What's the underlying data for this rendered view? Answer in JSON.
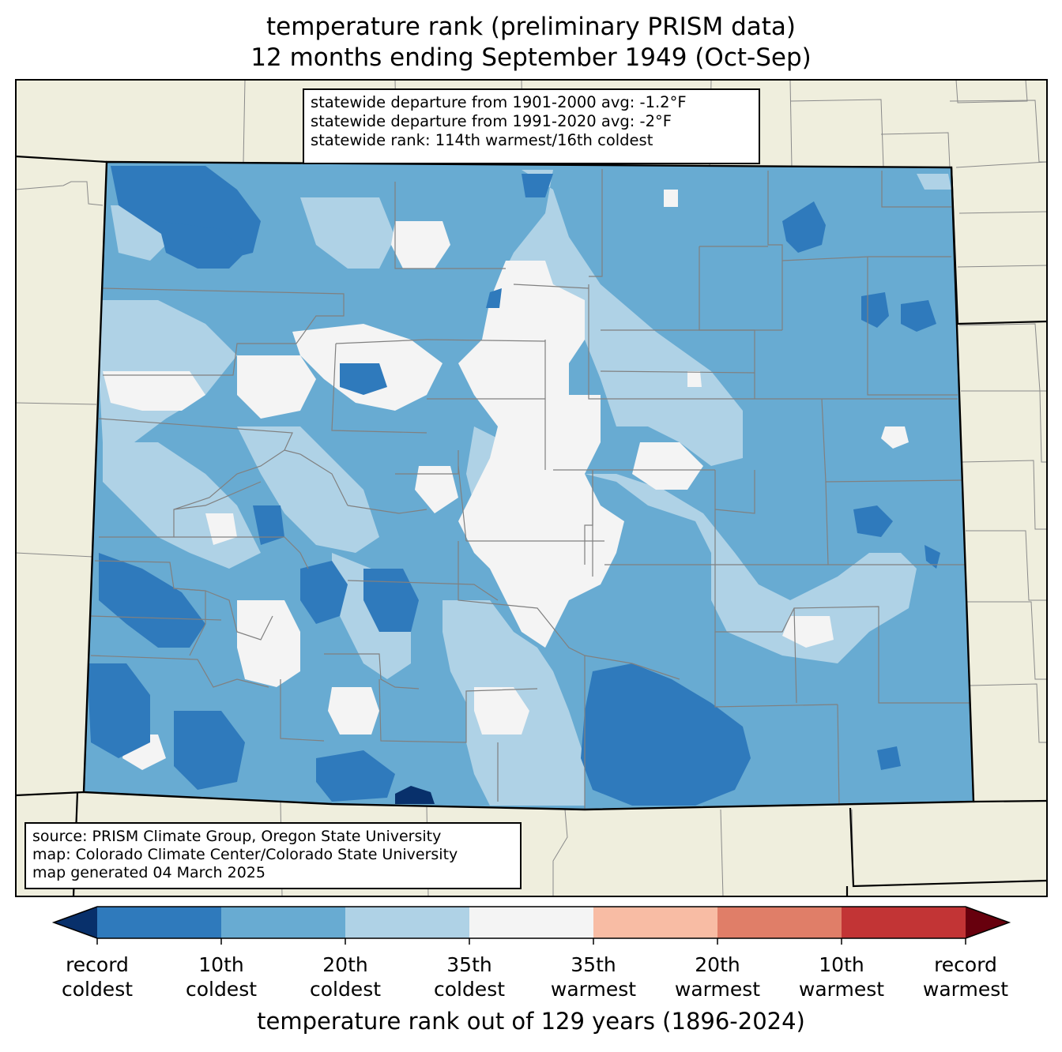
{
  "title_line1": "temperature rank (preliminary PRISM data)",
  "title_line2": "12 months ending September 1949 (Oct-Sep)",
  "stats": [
    "statewide departure from 1901-2000 avg: -1.2°F",
    "statewide departure from 1991-2020 avg: -2°F",
    "statewide rank: 114th warmest/16th coldest"
  ],
  "source": [
    "source: PRISM Climate Group, Oregon State University",
    "map: Colorado Climate Center/Colorado State University",
    "map generated 04 March 2025"
  ],
  "colorbar": {
    "title": "temperature rank out of 129 years (1896-2024)",
    "colors": [
      "#08306b",
      "#2f7abc",
      "#68abd2",
      "#afd2e6",
      "#f4f4f4",
      "#f8bca4",
      "#e07e68",
      "#c23435",
      "#67000d"
    ],
    "labels": [
      [
        "record",
        "coldest"
      ],
      [
        "10th",
        "coldest"
      ],
      [
        "20th",
        "coldest"
      ],
      [
        "35th",
        "coldest"
      ],
      [
        "35th",
        "warmest"
      ],
      [
        "20th",
        "warmest"
      ],
      [
        "10th",
        "warmest"
      ],
      [
        "record",
        "warmest"
      ]
    ]
  },
  "map_colors": {
    "land_outside": "#efeedd",
    "record_coldest": "#08306b",
    "rank_10_coldest": "#2f7abc",
    "rank_20_coldest": "#68abd2",
    "rank_35_coldest": "#afd2e6",
    "near_normal": "#f4f4f4",
    "county_lines": "#808080",
    "state_border": "#000000"
  }
}
